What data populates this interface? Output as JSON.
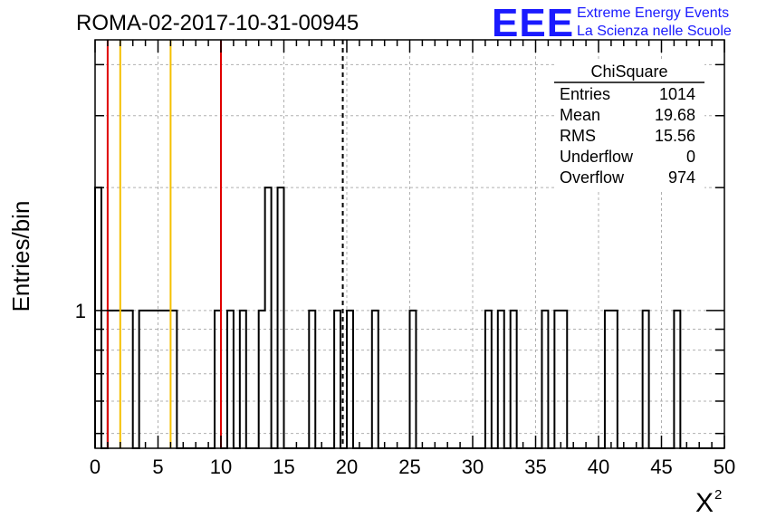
{
  "chart_data": {
    "type": "bar",
    "title": "ROMA-02-2017-10-31-00945",
    "xlabel": "X",
    "xlabel_superscript": "2",
    "ylabel": "Entries/bin",
    "xlim": [
      0,
      50
    ],
    "ylim": [
      0.46,
      4.6
    ],
    "y_scale": "log",
    "grid": true,
    "bin_width": 0.5,
    "x_ticks": [
      0,
      5,
      10,
      15,
      20,
      25,
      30,
      35,
      40,
      45,
      50
    ],
    "x_tick_labels": [
      "0",
      "5",
      "10",
      "15",
      "20",
      "25",
      "30",
      "35",
      "40",
      "45",
      "50"
    ],
    "y_tick_labels": [
      {
        "value": 1,
        "label": "1"
      }
    ],
    "bins": [
      {
        "x": 0.0,
        "count": 2
      },
      {
        "x": 0.5,
        "count": 0
      },
      {
        "x": 1.0,
        "count": 1
      },
      {
        "x": 1.5,
        "count": 1
      },
      {
        "x": 2.0,
        "count": 1
      },
      {
        "x": 2.5,
        "count": 1
      },
      {
        "x": 3.0,
        "count": 0
      },
      {
        "x": 3.5,
        "count": 1
      },
      {
        "x": 4.0,
        "count": 1
      },
      {
        "x": 4.5,
        "count": 1
      },
      {
        "x": 5.0,
        "count": 1
      },
      {
        "x": 5.5,
        "count": 1
      },
      {
        "x": 6.0,
        "count": 1
      },
      {
        "x": 9.5,
        "count": 1
      },
      {
        "x": 10.5,
        "count": 1
      },
      {
        "x": 11.5,
        "count": 1
      },
      {
        "x": 13.0,
        "count": 1
      },
      {
        "x": 13.5,
        "count": 2
      },
      {
        "x": 14.5,
        "count": 2
      },
      {
        "x": 17.0,
        "count": 1
      },
      {
        "x": 19.0,
        "count": 1
      },
      {
        "x": 20.0,
        "count": 1
      },
      {
        "x": 22.0,
        "count": 1
      },
      {
        "x": 25.0,
        "count": 1
      },
      {
        "x": 31.0,
        "count": 1
      },
      {
        "x": 32.0,
        "count": 1
      },
      {
        "x": 33.0,
        "count": 1
      },
      {
        "x": 35.5,
        "count": 1
      },
      {
        "x": 36.5,
        "count": 1
      },
      {
        "x": 37.0,
        "count": 1
      },
      {
        "x": 40.5,
        "count": 1
      },
      {
        "x": 41.0,
        "count": 1
      },
      {
        "x": 43.5,
        "count": 1
      },
      {
        "x": 46.0,
        "count": 1
      }
    ],
    "vertical_lines": [
      {
        "x": 1.0,
        "color": "#e00000",
        "style": "solid"
      },
      {
        "x": 2.0,
        "color": "#f5c000",
        "style": "solid"
      },
      {
        "x": 6.0,
        "color": "#f5c000",
        "style": "solid"
      },
      {
        "x": 10.0,
        "color": "#e00000",
        "style": "solid"
      },
      {
        "x": 19.68,
        "color": "#000000",
        "style": "dashed"
      }
    ],
    "stats_box": {
      "title": "ChiSquare",
      "rows": [
        {
          "label": "Entries",
          "value": "1014"
        },
        {
          "label": "Mean",
          "value": "19.68"
        },
        {
          "label": "RMS",
          "value": "15.56"
        },
        {
          "label": "Underflow",
          "value": "0"
        },
        {
          "label": "Overflow",
          "value": "974"
        }
      ]
    }
  },
  "logo": {
    "mark": "EEE",
    "line1": "Extreme Energy Events",
    "line2": "La Scienza nelle Scuole",
    "color": "#1a1aff"
  }
}
